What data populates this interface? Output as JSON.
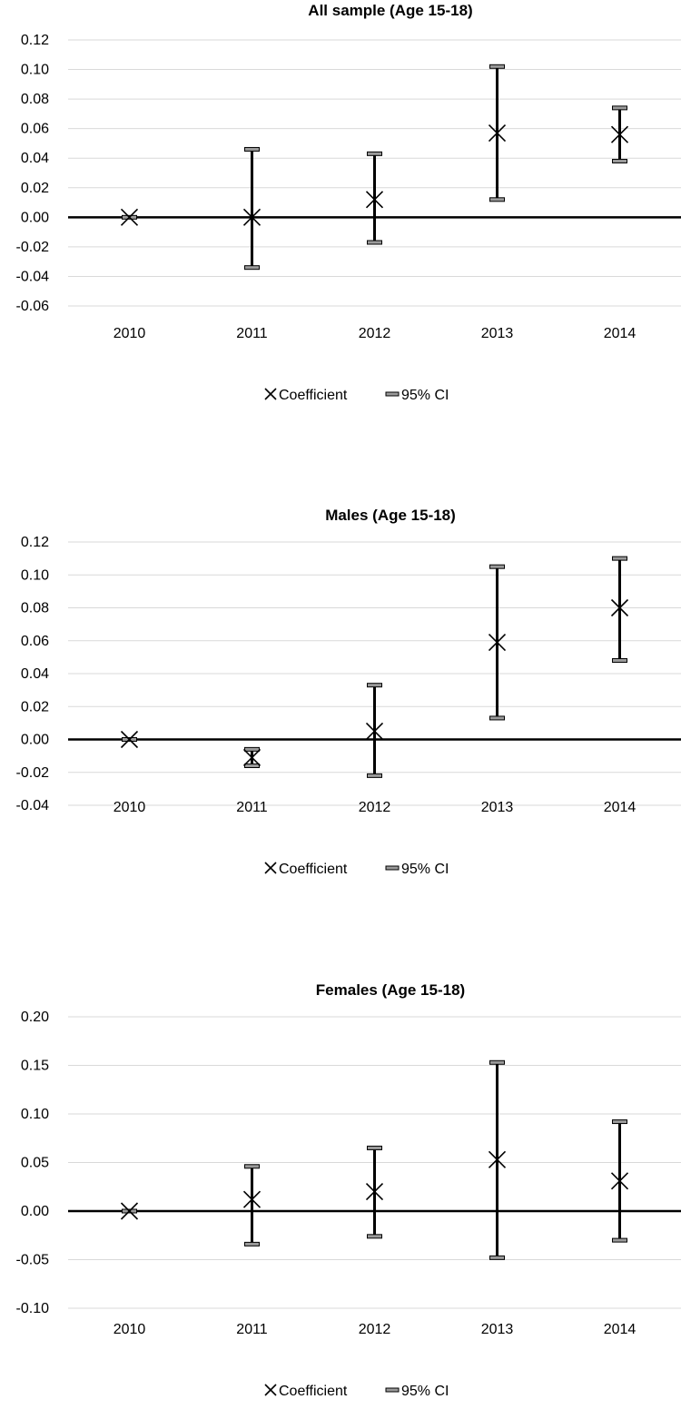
{
  "legend": {
    "marker_label": "Coefficient",
    "ci_label": "95% CI",
    "marker_icon": "x-marker-icon",
    "ci_icon": "cap-bar-icon"
  },
  "colors": {
    "line": "#000000",
    "cap_fill": "#9a9a9a",
    "grid": "#d9d9d9"
  },
  "chart_data": [
    {
      "type": "scatter",
      "title": "All sample (Age 15-18)",
      "xlabel": "",
      "ylabel": "",
      "categories": [
        "2010",
        "2011",
        "2012",
        "2013",
        "2014"
      ],
      "ylim": [
        -0.06,
        0.12
      ],
      "yticks": [
        "0.12",
        "0.10",
        "0.08",
        "0.06",
        "0.04",
        "0.02",
        "0.00",
        "-0.02",
        "-0.04",
        "-0.06"
      ],
      "grid": true,
      "legend_position": "bottom",
      "series": [
        {
          "name": "Coefficient",
          "values": [
            0.0,
            0.0,
            0.012,
            0.057,
            0.056
          ]
        },
        {
          "name": "95% CI",
          "lower": [
            0.0,
            -0.034,
            -0.017,
            0.012,
            0.038
          ],
          "upper": [
            0.0,
            0.046,
            0.043,
            0.102,
            0.074
          ]
        }
      ]
    },
    {
      "type": "scatter",
      "title": "Males (Age 15-18)",
      "xlabel": "",
      "ylabel": "",
      "categories": [
        "2010",
        "2011",
        "2012",
        "2013",
        "2014"
      ],
      "ylim": [
        -0.04,
        0.12
      ],
      "yticks": [
        "0.12",
        "0.10",
        "0.08",
        "0.06",
        "0.04",
        "0.02",
        "0.00",
        "-0.02",
        "-0.04"
      ],
      "grid": true,
      "legend_position": "bottom",
      "series": [
        {
          "name": "Coefficient",
          "values": [
            0.0,
            -0.011,
            0.005,
            0.059,
            0.08
          ]
        },
        {
          "name": "95% CI",
          "lower": [
            0.0,
            -0.016,
            -0.022,
            0.013,
            0.048
          ],
          "upper": [
            0.0,
            -0.006,
            0.033,
            0.105,
            0.11
          ]
        }
      ]
    },
    {
      "type": "scatter",
      "title": "Females (Age 15-18)",
      "xlabel": "",
      "ylabel": "",
      "categories": [
        "2010",
        "2011",
        "2012",
        "2013",
        "2014"
      ],
      "ylim": [
        -0.1,
        0.2
      ],
      "yticks": [
        "0.20",
        "0.15",
        "0.10",
        "0.05",
        "0.00",
        "-0.05",
        "-0.10"
      ],
      "grid": true,
      "legend_position": "bottom",
      "series": [
        {
          "name": "Coefficient",
          "values": [
            0.0,
            0.012,
            0.02,
            0.053,
            0.031
          ]
        },
        {
          "name": "95% CI",
          "lower": [
            0.0,
            -0.034,
            -0.026,
            -0.048,
            -0.03
          ],
          "upper": [
            0.0,
            0.046,
            0.065,
            0.153,
            0.092
          ]
        }
      ]
    }
  ]
}
